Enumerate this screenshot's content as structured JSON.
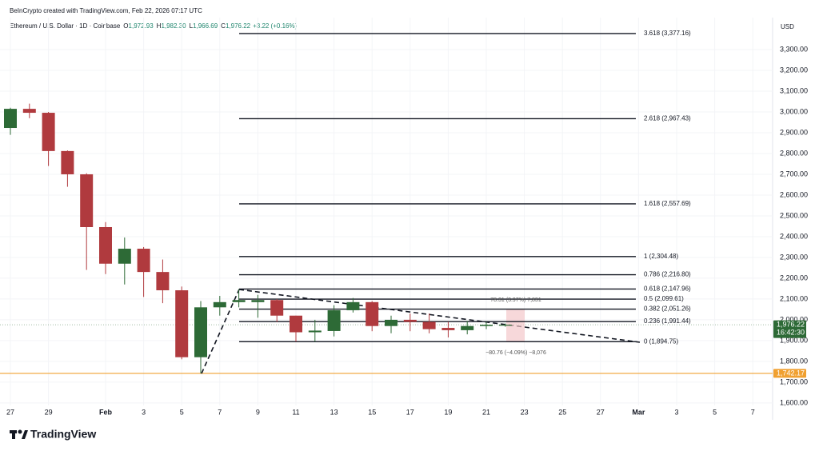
{
  "header": {
    "credit": "BeInCrypto created with TradingView.com, Feb 22, 2026 07:17 UTC",
    "symbol": "Ethereum / U.S. Dollar · 1D · Coinbase",
    "ohlc": [
      {
        "key": "O",
        "value": "1,972.93"
      },
      {
        "key": "H",
        "value": "1,982.30"
      },
      {
        "key": "L",
        "value": "1,966.69"
      },
      {
        "key": "C",
        "value": "1,976.22"
      }
    ],
    "change": "+3.22 (+0.16%)"
  },
  "chart_data": {
    "type": "candlestick",
    "currency": "USD",
    "categories": [
      "27",
      null,
      "29",
      null,
      null,
      "Feb",
      null,
      "3",
      null,
      "5",
      null,
      "7",
      null,
      "9",
      null,
      "11",
      null,
      "13",
      null,
      "15",
      null,
      "17",
      null,
      "19",
      null,
      "21",
      null,
      "23",
      null,
      "25",
      null,
      "27",
      null,
      "Mar",
      null,
      "3",
      null,
      "5",
      null,
      "7",
      null
    ],
    "open": [
      2923,
      3015,
      2996,
      2812,
      2700,
      2446,
      2270,
      2342,
      2230,
      2142,
      1820,
      2060,
      2085,
      2085,
      2095,
      2020,
      1940,
      1946,
      2046,
      2085,
      1970,
      2000,
      1990,
      1961,
      1950,
      1970,
      1972.93,
      null,
      null,
      null,
      null,
      null,
      null,
      null,
      null,
      null,
      null,
      null,
      null,
      null,
      null
    ],
    "high": [
      3020,
      3040,
      3000,
      2815,
      2705,
      2470,
      2396,
      2350,
      2290,
      2160,
      2090,
      2115,
      2148,
      2120,
      2100,
      2020,
      2000,
      2070,
      2105,
      2090,
      2020,
      2030,
      2030,
      1990,
      1995,
      1990,
      1982.3,
      null,
      null,
      null,
      null,
      null,
      null,
      null,
      null,
      null,
      null,
      null,
      null,
      null,
      null
    ],
    "low": [
      2890,
      2970,
      2740,
      2640,
      2240,
      2220,
      2170,
      2110,
      2080,
      1810,
      1742,
      2020,
      2060,
      2010,
      1990,
      1895,
      1895,
      1920,
      2035,
      1945,
      1935,
      1945,
      1935,
      1915,
      1930,
      1955,
      1966.69,
      null,
      null,
      null,
      null,
      null,
      null,
      null,
      null,
      null,
      null,
      null,
      null,
      null,
      null
    ],
    "close": [
      3015,
      2996,
      2812,
      2700,
      2446,
      2270,
      2342,
      2230,
      2142,
      1820,
      2060,
      2085,
      2095,
      2095,
      2020,
      1940,
      1948,
      2046,
      2085,
      1970,
      2000,
      1990,
      1955,
      1950,
      1970,
      1976,
      1976.22,
      null,
      null,
      null,
      null,
      null,
      null,
      null,
      null,
      null,
      null,
      null,
      null,
      null,
      null
    ],
    "up_color": "#2d6a36",
    "down_color": "#b03a3e",
    "ylim": [
      1588,
      3454
    ],
    "yticks": [
      {
        "value": 1600,
        "label": "1,600.00"
      },
      {
        "value": 1700,
        "label": "1,700.00"
      },
      {
        "value": 1800,
        "label": "1,800.00"
      },
      {
        "value": 1900,
        "label": "1,900.00"
      },
      {
        "value": 2000,
        "label": "2,000.00"
      },
      {
        "value": 2100,
        "label": "2,100.00"
      },
      {
        "value": 2200,
        "label": "2,200.00"
      },
      {
        "value": 2300,
        "label": "2,300.00"
      },
      {
        "value": 2400,
        "label": "2,400.00"
      },
      {
        "value": 2500,
        "label": "2,500.00"
      },
      {
        "value": 2600,
        "label": "2,600.00"
      },
      {
        "value": 2700,
        "label": "2,700.00"
      },
      {
        "value": 2800,
        "label": "2,800.00"
      },
      {
        "value": 2900,
        "label": "2,900.00"
      },
      {
        "value": 3000,
        "label": "3,000.00"
      },
      {
        "value": 3100,
        "label": "3,100.00"
      },
      {
        "value": 3200,
        "label": "3,200.00"
      },
      {
        "value": 3300,
        "label": "3,300.00"
      }
    ],
    "grid": true,
    "fib_color": "#131722",
    "fib_levels": [
      {
        "label": "3.618 (3,377.16)",
        "value": 3377.16
      },
      {
        "label": "2.618 (2,967.43)",
        "value": 2967.43
      },
      {
        "label": "1.618 (2,557.69)",
        "value": 2557.69
      },
      {
        "label": "1 (2,304.48)",
        "value": 2304.48
      },
      {
        "label": "0.786 (2,216.80)",
        "value": 2216.8
      },
      {
        "label": "0.618 (2,147.96)",
        "value": 2147.96
      },
      {
        "label": "0.5 (2,099.61)",
        "value": 2099.61
      },
      {
        "label": "0.382 (2,051.26)",
        "value": 2051.26
      },
      {
        "label": "0.236 (1,991.44)",
        "value": 1991.44
      },
      {
        "label": "0 (1,894.75)",
        "value": 1894.75
      }
    ],
    "price_lines": [
      {
        "label": "1,742.17",
        "value": 1742.17,
        "color": "#f0a030"
      },
      {
        "label": "1,976.22",
        "value": 1976.22,
        "color": "#2d6a36",
        "countdown": "16:42:30"
      }
    ],
    "annotations": [
      "78.31 (3.97%) 7,831",
      "−80.76 (−4.09%) −8,076"
    ]
  },
  "brand": "TradingView"
}
